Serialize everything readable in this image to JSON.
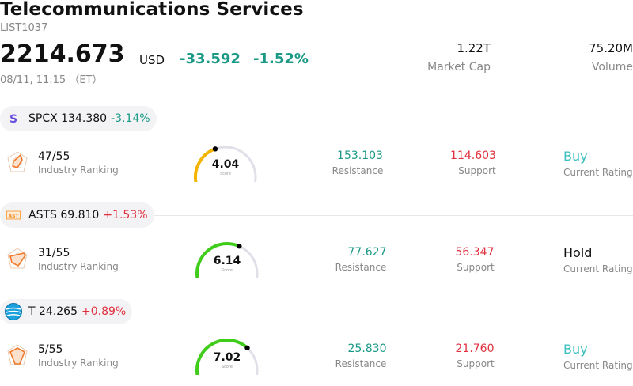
{
  "header": {
    "title": "Telecommunications Services",
    "code": "LIST1037",
    "price": "2214.673",
    "currency": "USD",
    "change": "-33.592",
    "change_pct": "-1.52%",
    "timestamp": "08/11, 11:15 （ET）",
    "market_cap_value": "1.22T",
    "market_cap_label": "Market Cap",
    "volume_value": "75.20M",
    "volume_label": "Volume"
  },
  "colors": {
    "positive_green": "#1a9a86",
    "negative_red": "#e0303e",
    "gauge_track": "#e0e0e8",
    "gauge_low": "#f5b400",
    "gauge_high": "#3fcc1a",
    "buy_cyan": "#3bbfbf"
  },
  "stocks": [
    {
      "icon": "spcx-logo-icon",
      "ticker": "SPCX 134.380",
      "change_pct": "-3.14%",
      "change_color": "#1a9a86",
      "rank": "47/55",
      "rank_label": "Industry Ranking",
      "score": "4.04",
      "score_label": "Score",
      "score_fraction": 0.404,
      "resistance": "153.103",
      "resistance_label": "Resistance",
      "support": "114.603",
      "support_label": "Support",
      "rating": "Buy",
      "rating_label": "Current Rating",
      "rating_color": "#3bbfbf"
    },
    {
      "icon": "asts-logo-icon",
      "ticker": "ASTS 69.810",
      "change_pct": "+1.53%",
      "change_color": "#e0303e",
      "rank": "31/55",
      "rank_label": "Industry Ranking",
      "score": "6.14",
      "score_label": "Score",
      "score_fraction": 0.614,
      "resistance": "77.627",
      "resistance_label": "Resistance",
      "support": "56.347",
      "support_label": "Support",
      "rating": "Hold",
      "rating_label": "Current Rating",
      "rating_color": "#111111"
    },
    {
      "icon": "att-logo-icon",
      "ticker": "T 24.265",
      "change_pct": "+0.89%",
      "change_color": "#e0303e",
      "rank": "5/55",
      "rank_label": "Industry Ranking",
      "score": "7.02",
      "score_label": "Score",
      "score_fraction": 0.702,
      "resistance": "25.830",
      "resistance_label": "Resistance",
      "support": "21.760",
      "support_label": "Support",
      "rating": "Buy",
      "rating_label": "Current Rating",
      "rating_color": "#3bbfbf"
    }
  ]
}
